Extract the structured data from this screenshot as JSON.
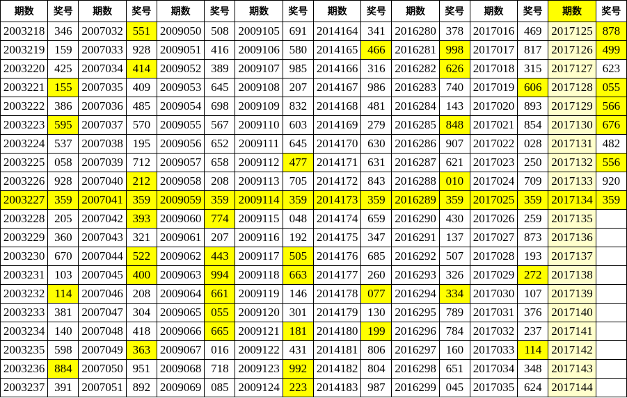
{
  "h": {
    "qi": "期数",
    "jiang": "奖号"
  },
  "cols": [
    [
      [
        "2003218",
        "346",
        0,
        0
      ],
      [
        "2003219",
        "159",
        0,
        0
      ],
      [
        "2003220",
        "425",
        0,
        0
      ],
      [
        "2003221",
        "155",
        0,
        1
      ],
      [
        "2003222",
        "386",
        0,
        0
      ],
      [
        "2003223",
        "595",
        0,
        1
      ],
      [
        "2003224",
        "537",
        0,
        0
      ],
      [
        "2003225",
        "058",
        0,
        0
      ],
      [
        "2003226",
        "928",
        0,
        0
      ],
      [
        "2003227",
        "359",
        1,
        1
      ],
      [
        "2003228",
        "205",
        0,
        0
      ],
      [
        "2003229",
        "360",
        0,
        0
      ],
      [
        "2003230",
        "670",
        0,
        0
      ],
      [
        "2003231",
        "103",
        0,
        0
      ],
      [
        "2003232",
        "114",
        0,
        1
      ],
      [
        "2003233",
        "381",
        0,
        0
      ],
      [
        "2003234",
        "140",
        0,
        0
      ],
      [
        "2003235",
        "598",
        0,
        0
      ],
      [
        "2003236",
        "884",
        0,
        1
      ],
      [
        "2003237",
        "391",
        0,
        0
      ]
    ],
    [
      [
        "2007032",
        "551",
        0,
        1
      ],
      [
        "2007033",
        "928",
        0,
        0
      ],
      [
        "2007034",
        "414",
        0,
        1
      ],
      [
        "2007035",
        "409",
        0,
        0
      ],
      [
        "2007036",
        "485",
        0,
        0
      ],
      [
        "2007037",
        "570",
        0,
        0
      ],
      [
        "2007038",
        "195",
        0,
        0
      ],
      [
        "2007039",
        "712",
        0,
        0
      ],
      [
        "2007040",
        "212",
        0,
        1
      ],
      [
        "2007041",
        "359",
        1,
        1
      ],
      [
        "2007042",
        "393",
        0,
        1
      ],
      [
        "2007043",
        "321",
        0,
        0
      ],
      [
        "2007044",
        "522",
        0,
        1
      ],
      [
        "2007045",
        "400",
        0,
        1
      ],
      [
        "2007046",
        "208",
        0,
        0
      ],
      [
        "2007047",
        "304",
        0,
        0
      ],
      [
        "2007048",
        "418",
        0,
        0
      ],
      [
        "2007049",
        "363",
        0,
        1
      ],
      [
        "2007050",
        "951",
        0,
        0
      ],
      [
        "2007051",
        "892",
        0,
        0
      ]
    ],
    [
      [
        "2009050",
        "508",
        0,
        0
      ],
      [
        "2009051",
        "416",
        0,
        0
      ],
      [
        "2009052",
        "389",
        0,
        0
      ],
      [
        "2009053",
        "645",
        0,
        0
      ],
      [
        "2009054",
        "698",
        0,
        0
      ],
      [
        "2009055",
        "567",
        0,
        0
      ],
      [
        "2009056",
        "652",
        0,
        0
      ],
      [
        "2009057",
        "658",
        0,
        0
      ],
      [
        "2009058",
        "208",
        0,
        0
      ],
      [
        "2009059",
        "359",
        1,
        1
      ],
      [
        "2009060",
        "774",
        0,
        1
      ],
      [
        "2009061",
        "207",
        0,
        0
      ],
      [
        "2009062",
        "443",
        0,
        1
      ],
      [
        "2009063",
        "994",
        0,
        1
      ],
      [
        "2009064",
        "661",
        0,
        1
      ],
      [
        "2009065",
        "055",
        0,
        1
      ],
      [
        "2009066",
        "665",
        0,
        1
      ],
      [
        "2009067",
        "016",
        0,
        0
      ],
      [
        "2009068",
        "718",
        0,
        0
      ],
      [
        "2009069",
        "085",
        0,
        0
      ]
    ],
    [
      [
        "2009105",
        "691",
        0,
        0
      ],
      [
        "2009106",
        "580",
        0,
        0
      ],
      [
        "2009107",
        "985",
        0,
        0
      ],
      [
        "2009108",
        "207",
        0,
        0
      ],
      [
        "2009109",
        "832",
        0,
        0
      ],
      [
        "2009110",
        "603",
        0,
        0
      ],
      [
        "2009111",
        "645",
        0,
        0
      ],
      [
        "2009112",
        "477",
        0,
        1
      ],
      [
        "2009113",
        "705",
        0,
        0
      ],
      [
        "2009114",
        "359",
        1,
        1
      ],
      [
        "2009115",
        "048",
        0,
        0
      ],
      [
        "2009116",
        "192",
        0,
        0
      ],
      [
        "2009117",
        "505",
        0,
        1
      ],
      [
        "2009118",
        "663",
        0,
        1
      ],
      [
        "2009119",
        "146",
        0,
        0
      ],
      [
        "2009120",
        "301",
        0,
        0
      ],
      [
        "2009121",
        "181",
        0,
        1
      ],
      [
        "2009122",
        "431",
        0,
        0
      ],
      [
        "2009123",
        "992",
        0,
        1
      ],
      [
        "2009124",
        "223",
        0,
        1
      ]
    ],
    [
      [
        "2014164",
        "341",
        0,
        0
      ],
      [
        "2014165",
        "466",
        0,
        1
      ],
      [
        "2014166",
        "316",
        0,
        0
      ],
      [
        "2014167",
        "986",
        0,
        0
      ],
      [
        "2014168",
        "481",
        0,
        0
      ],
      [
        "2014169",
        "279",
        0,
        0
      ],
      [
        "2014170",
        "630",
        0,
        0
      ],
      [
        "2014171",
        "631",
        0,
        0
      ],
      [
        "2014172",
        "843",
        0,
        0
      ],
      [
        "2014173",
        "359",
        1,
        1
      ],
      [
        "2014174",
        "659",
        0,
        0
      ],
      [
        "2014175",
        "347",
        0,
        0
      ],
      [
        "2014176",
        "685",
        0,
        0
      ],
      [
        "2014177",
        "260",
        0,
        0
      ],
      [
        "2014178",
        "077",
        0,
        1
      ],
      [
        "2014179",
        "130",
        0,
        0
      ],
      [
        "2014180",
        "199",
        0,
        1
      ],
      [
        "2014181",
        "806",
        0,
        0
      ],
      [
        "2014182",
        "804",
        0,
        0
      ],
      [
        "2014183",
        "987",
        0,
        0
      ]
    ],
    [
      [
        "2016280",
        "378",
        0,
        0
      ],
      [
        "2016281",
        "998",
        0,
        1
      ],
      [
        "2016282",
        "626",
        0,
        1
      ],
      [
        "2016283",
        "740",
        0,
        0
      ],
      [
        "2016284",
        "143",
        0,
        0
      ],
      [
        "2016285",
        "848",
        0,
        1
      ],
      [
        "2016286",
        "907",
        0,
        0
      ],
      [
        "2016287",
        "621",
        0,
        0
      ],
      [
        "2016288",
        "010",
        0,
        1
      ],
      [
        "2016289",
        "359",
        1,
        1
      ],
      [
        "2016290",
        "430",
        0,
        0
      ],
      [
        "2016291",
        "137",
        0,
        0
      ],
      [
        "2016292",
        "507",
        0,
        0
      ],
      [
        "2016293",
        "326",
        0,
        0
      ],
      [
        "2016294",
        "334",
        0,
        1
      ],
      [
        "2016295",
        "789",
        0,
        0
      ],
      [
        "2016296",
        "784",
        0,
        0
      ],
      [
        "2016297",
        "160",
        0,
        0
      ],
      [
        "2016298",
        "651",
        0,
        0
      ],
      [
        "2016299",
        "045",
        0,
        0
      ]
    ],
    [
      [
        "2017016",
        "469",
        0,
        0
      ],
      [
        "2017017",
        "817",
        0,
        0
      ],
      [
        "2017018",
        "315",
        0,
        0
      ],
      [
        "2017019",
        "606",
        0,
        1
      ],
      [
        "2017020",
        "893",
        0,
        0
      ],
      [
        "2017021",
        "854",
        0,
        0
      ],
      [
        "2017022",
        "028",
        0,
        0
      ],
      [
        "2017023",
        "250",
        0,
        0
      ],
      [
        "2017024",
        "709",
        0,
        0
      ],
      [
        "2017025",
        "359",
        1,
        1
      ],
      [
        "2017026",
        "259",
        0,
        0
      ],
      [
        "2017027",
        "873",
        0,
        0
      ],
      [
        "2017028",
        "193",
        0,
        0
      ],
      [
        "2017029",
        "272",
        0,
        1
      ],
      [
        "2017030",
        "107",
        0,
        0
      ],
      [
        "2017031",
        "376",
        0,
        0
      ],
      [
        "2017032",
        "237",
        0,
        0
      ],
      [
        "2017033",
        "114",
        0,
        1
      ],
      [
        "2017034",
        "348",
        0,
        0
      ],
      [
        "2017035",
        "624",
        0,
        0
      ]
    ],
    [
      [
        "2017125",
        "878",
        2,
        1
      ],
      [
        "2017126",
        "499",
        2,
        1
      ],
      [
        "2017127",
        "623",
        2,
        0
      ],
      [
        "2017128",
        "055",
        2,
        1
      ],
      [
        "2017129",
        "566",
        2,
        1
      ],
      [
        "2017130",
        "676",
        2,
        1
      ],
      [
        "2017131",
        "482",
        2,
        0
      ],
      [
        "2017132",
        "556",
        2,
        1
      ],
      [
        "2017133",
        "920",
        2,
        0
      ],
      [
        "2017134",
        "359",
        1,
        1
      ],
      [
        "2017135",
        "",
        2,
        0
      ],
      [
        "2017136",
        "",
        2,
        0
      ],
      [
        "2017137",
        "",
        2,
        0
      ],
      [
        "2017138",
        "",
        2,
        0
      ],
      [
        "2017139",
        "",
        2,
        0
      ],
      [
        "2017140",
        "",
        2,
        0
      ],
      [
        "2017141",
        "",
        2,
        0
      ],
      [
        "2017142",
        "",
        2,
        0
      ],
      [
        "2017143",
        "",
        2,
        0
      ],
      [
        "2017144",
        "",
        2,
        0
      ]
    ]
  ]
}
